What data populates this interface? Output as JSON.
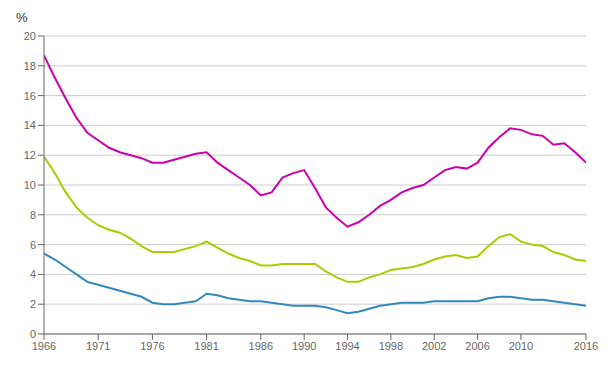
{
  "chart_data": {
    "type": "line",
    "ylabel": "%",
    "x": [
      1966,
      1967,
      1968,
      1969,
      1970,
      1971,
      1972,
      1973,
      1974,
      1975,
      1976,
      1977,
      1978,
      1979,
      1980,
      1981,
      1982,
      1983,
      1984,
      1985,
      1986,
      1987,
      1988,
      1989,
      1990,
      1991,
      1992,
      1993,
      1994,
      1995,
      1996,
      1997,
      1998,
      1999,
      2000,
      2001,
      2002,
      2003,
      2004,
      2005,
      2006,
      2007,
      2008,
      2009,
      2010,
      2011,
      2012,
      2013,
      2014,
      2015,
      2016
    ],
    "series": [
      {
        "color": "#cc00aa",
        "values": [
          18.7,
          17.2,
          15.8,
          14.5,
          13.5,
          13.0,
          12.5,
          12.2,
          12.0,
          11.8,
          11.5,
          11.5,
          11.7,
          11.9,
          12.1,
          12.2,
          11.5,
          11.0,
          10.5,
          10.0,
          9.3,
          9.5,
          10.5,
          10.8,
          11.0,
          9.8,
          8.5,
          7.8,
          7.2,
          7.5,
          8.0,
          8.6,
          9.0,
          9.5,
          9.8,
          10.0,
          10.5,
          11.0,
          11.2,
          11.1,
          11.5,
          12.5,
          13.2,
          13.8,
          13.7,
          13.4,
          13.3,
          12.7,
          12.8,
          12.2,
          11.5
        ]
      },
      {
        "color": "#aacc00",
        "values": [
          11.9,
          10.8,
          9.5,
          8.5,
          7.8,
          7.3,
          7.0,
          6.8,
          6.4,
          5.9,
          5.5,
          5.5,
          5.5,
          5.7,
          5.9,
          6.2,
          5.8,
          5.4,
          5.1,
          4.9,
          4.6,
          4.6,
          4.7,
          4.7,
          4.7,
          4.7,
          4.2,
          3.8,
          3.5,
          3.5,
          3.8,
          4.0,
          4.3,
          4.4,
          4.5,
          4.7,
          5.0,
          5.2,
          5.3,
          5.1,
          5.2,
          5.9,
          6.5,
          6.7,
          6.2,
          6.0,
          5.9,
          5.5,
          5.3,
          5.0,
          4.9
        ]
      },
      {
        "color": "#3388bb",
        "values": [
          5.4,
          5.0,
          4.5,
          4.0,
          3.5,
          3.3,
          3.1,
          2.9,
          2.7,
          2.5,
          2.1,
          2.0,
          2.0,
          2.1,
          2.2,
          2.7,
          2.6,
          2.4,
          2.3,
          2.2,
          2.2,
          2.1,
          2.0,
          1.9,
          1.9,
          1.9,
          1.8,
          1.6,
          1.4,
          1.5,
          1.7,
          1.9,
          2.0,
          2.1,
          2.1,
          2.1,
          2.2,
          2.2,
          2.2,
          2.2,
          2.2,
          2.4,
          2.5,
          2.5,
          2.4,
          2.3,
          2.3,
          2.2,
          2.1,
          2.0,
          1.9
        ]
      }
    ],
    "xlim": [
      1966,
      2016
    ],
    "xticks": [
      1966,
      1971,
      1976,
      1981,
      1986,
      1990,
      1994,
      1998,
      2002,
      2006,
      2010,
      2016
    ],
    "ylim": [
      0,
      20
    ],
    "yticks": [
      0,
      2,
      4,
      6,
      8,
      10,
      12,
      14,
      16,
      18,
      20
    ],
    "grid": "y"
  }
}
